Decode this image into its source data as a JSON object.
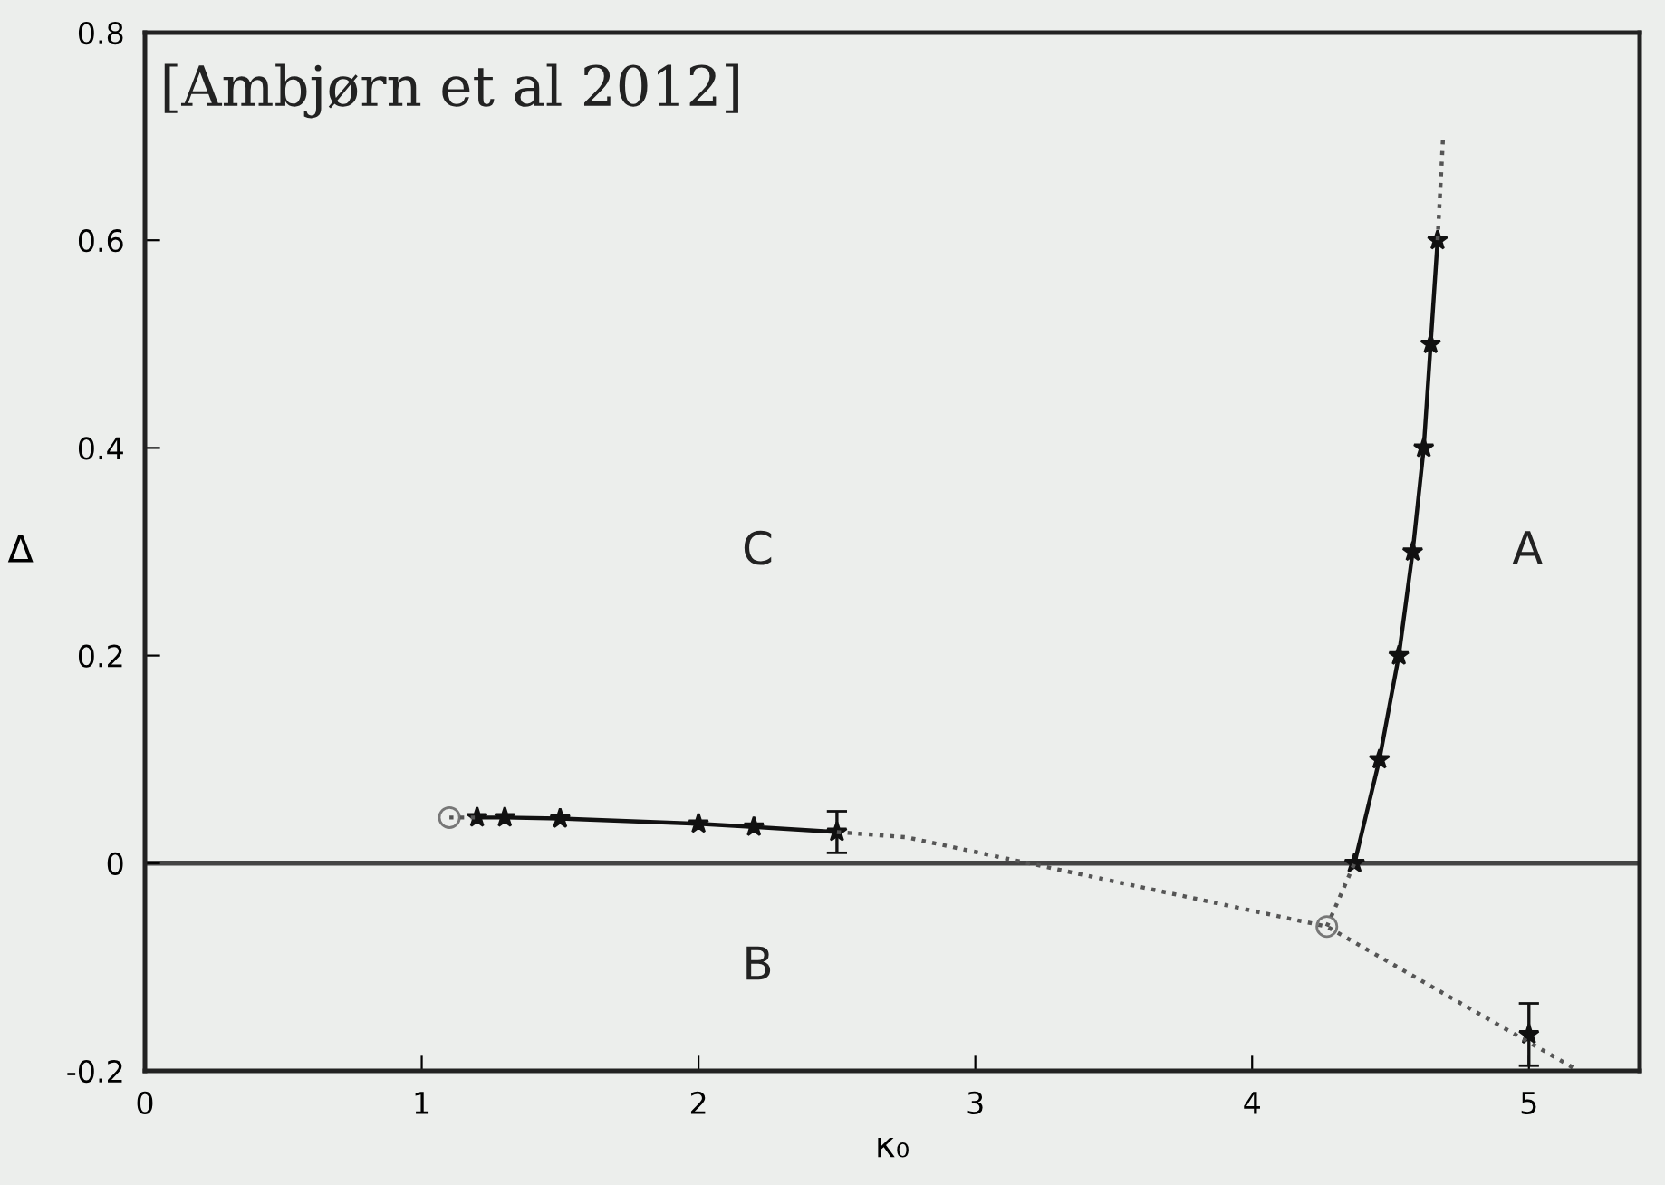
{
  "chart_data": {
    "type": "line",
    "xlabel": "κ₀",
    "ylabel": "Δ",
    "xlim": [
      0,
      5.4
    ],
    "ylim": [
      -0.2,
      0.8
    ],
    "xticks": [
      0,
      1,
      2,
      3,
      4,
      5
    ],
    "yticks": [
      {
        "value": -0.2,
        "label": "-0.2"
      },
      0,
      0.2,
      0.4,
      0.6,
      0.8
    ],
    "grid": false,
    "legend": false,
    "ref_lines": [
      {
        "axis": "y",
        "value": 0,
        "color": "#444444",
        "line_style": "solid"
      }
    ],
    "annotations": [
      "[Ambjørn et al 2012]",
      "C",
      "A",
      "B"
    ],
    "series": [
      {
        "color": "#111111",
        "marker": "star",
        "line_style": "solid",
        "x": [
          1.2,
          1.3,
          1.5,
          2.0,
          2.2,
          2.5
        ],
        "values": [
          0.044,
          0.044,
          0.043,
          0.038,
          0.035,
          0.03
        ],
        "errors": [
          null,
          null,
          null,
          null,
          null,
          0.02
        ]
      },
      {
        "color": "#111111",
        "marker": "star",
        "line_style": "solid",
        "x": [
          4.37,
          4.46,
          4.53,
          4.58,
          4.62,
          4.645,
          4.67
        ],
        "values": [
          0,
          0.1,
          0.2,
          0.3,
          0.4,
          0.5,
          0.6
        ]
      },
      {
        "type": "scatter",
        "color": "#111111",
        "marker": "star",
        "x": [
          5.0
        ],
        "values": [
          -0.165
        ],
        "errors": [
          0.03
        ]
      },
      {
        "type": "scatter",
        "color": "#777777",
        "marker": "circle",
        "x": [
          1.1,
          4.27
        ],
        "values": [
          0.044,
          -0.061
        ]
      },
      {
        "type": "line",
        "color": "#555555",
        "marker": "none",
        "line_style": "dotted",
        "x": [
          1.1,
          1.2
        ],
        "values": [
          0.044,
          0.044
        ]
      },
      {
        "type": "line",
        "color": "#555555",
        "marker": "none",
        "line_style": "dotted",
        "x": [
          2.5,
          2.75,
          4.27,
          5.18
        ],
        "values": [
          0.03,
          0.025,
          -0.061,
          -0.2
        ]
      },
      {
        "type": "line",
        "color": "#555555",
        "marker": "none",
        "line_style": "dotted",
        "x": [
          4.27,
          4.37
        ],
        "values": [
          -0.061,
          0
        ]
      },
      {
        "type": "line",
        "color": "#555555",
        "marker": "none",
        "line_style": "dotted",
        "x": [
          4.67,
          4.69
        ],
        "values": [
          0.6,
          0.7
        ]
      }
    ]
  }
}
